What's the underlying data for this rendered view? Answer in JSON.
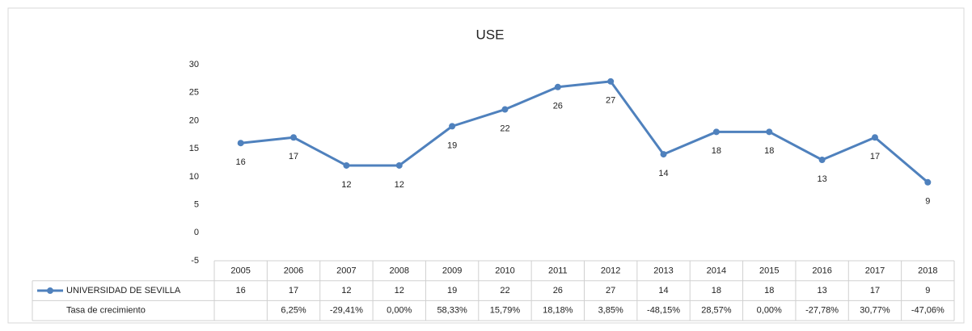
{
  "chart_data": {
    "type": "line",
    "title": "USE",
    "categories": [
      "2005",
      "2006",
      "2007",
      "2008",
      "2009",
      "2010",
      "2011",
      "2012",
      "2013",
      "2014",
      "2015",
      "2016",
      "2017",
      "2018"
    ],
    "series": [
      {
        "name": "UNIVERSIDAD DE SEVILLA",
        "color": "#4f81bd",
        "values": [
          16,
          17,
          12,
          12,
          19,
          22,
          26,
          27,
          14,
          18,
          18,
          13,
          17,
          9
        ]
      }
    ],
    "growth": {
      "name": "Tasa de crecimiento",
      "labels": [
        null,
        "6,25%",
        "-29,41%",
        "0,00%",
        "58,33%",
        "15,79%",
        "18,18%",
        "3,85%",
        "-48,15%",
        "28,57%",
        "0,00%",
        "-27,78%",
        "30,77%",
        "-47,06%"
      ]
    },
    "ylim": [
      -5,
      30
    ],
    "yticks": [
      -5,
      0,
      5,
      10,
      15,
      20,
      25,
      30
    ],
    "grid": false
  }
}
